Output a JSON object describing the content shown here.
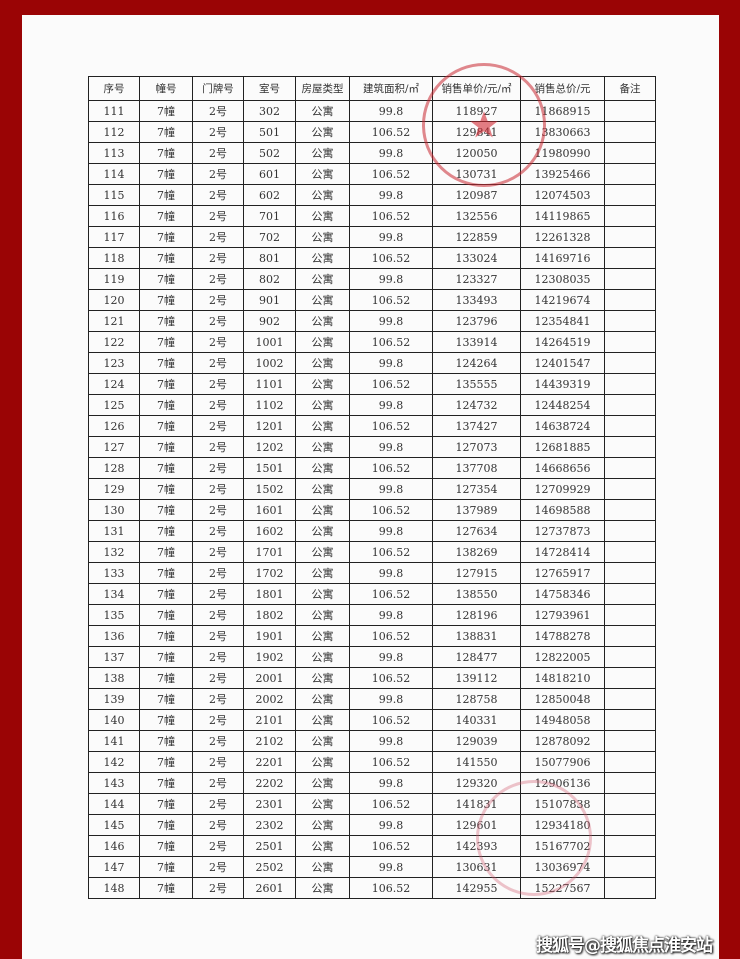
{
  "table": {
    "headers": [
      "序号",
      "幢号",
      "门牌号",
      "室号",
      "房屋类型",
      "建筑面积/㎡",
      "销售单价/元/㎡",
      "销售总价/元",
      "备注"
    ],
    "rows": [
      [
        "111",
        "7幢",
        "2号",
        "302",
        "公寓",
        "99.8",
        "118927",
        "11868915",
        ""
      ],
      [
        "112",
        "7幢",
        "2号",
        "501",
        "公寓",
        "106.52",
        "129841",
        "13830663",
        ""
      ],
      [
        "113",
        "7幢",
        "2号",
        "502",
        "公寓",
        "99.8",
        "120050",
        "11980990",
        ""
      ],
      [
        "114",
        "7幢",
        "2号",
        "601",
        "公寓",
        "106.52",
        "130731",
        "13925466",
        ""
      ],
      [
        "115",
        "7幢",
        "2号",
        "602",
        "公寓",
        "99.8",
        "120987",
        "12074503",
        ""
      ],
      [
        "116",
        "7幢",
        "2号",
        "701",
        "公寓",
        "106.52",
        "132556",
        "14119865",
        ""
      ],
      [
        "117",
        "7幢",
        "2号",
        "702",
        "公寓",
        "99.8",
        "122859",
        "12261328",
        ""
      ],
      [
        "118",
        "7幢",
        "2号",
        "801",
        "公寓",
        "106.52",
        "133024",
        "14169716",
        ""
      ],
      [
        "119",
        "7幢",
        "2号",
        "802",
        "公寓",
        "99.8",
        "123327",
        "12308035",
        ""
      ],
      [
        "120",
        "7幢",
        "2号",
        "901",
        "公寓",
        "106.52",
        "133493",
        "14219674",
        ""
      ],
      [
        "121",
        "7幢",
        "2号",
        "902",
        "公寓",
        "99.8",
        "123796",
        "12354841",
        ""
      ],
      [
        "122",
        "7幢",
        "2号",
        "1001",
        "公寓",
        "106.52",
        "133914",
        "14264519",
        ""
      ],
      [
        "123",
        "7幢",
        "2号",
        "1002",
        "公寓",
        "99.8",
        "124264",
        "12401547",
        ""
      ],
      [
        "124",
        "7幢",
        "2号",
        "1101",
        "公寓",
        "106.52",
        "135555",
        "14439319",
        ""
      ],
      [
        "125",
        "7幢",
        "2号",
        "1102",
        "公寓",
        "99.8",
        "124732",
        "12448254",
        ""
      ],
      [
        "126",
        "7幢",
        "2号",
        "1201",
        "公寓",
        "106.52",
        "137427",
        "14638724",
        ""
      ],
      [
        "127",
        "7幢",
        "2号",
        "1202",
        "公寓",
        "99.8",
        "127073",
        "12681885",
        ""
      ],
      [
        "128",
        "7幢",
        "2号",
        "1501",
        "公寓",
        "106.52",
        "137708",
        "14668656",
        ""
      ],
      [
        "129",
        "7幢",
        "2号",
        "1502",
        "公寓",
        "99.8",
        "127354",
        "12709929",
        ""
      ],
      [
        "130",
        "7幢",
        "2号",
        "1601",
        "公寓",
        "106.52",
        "137989",
        "14698588",
        ""
      ],
      [
        "131",
        "7幢",
        "2号",
        "1602",
        "公寓",
        "99.8",
        "127634",
        "12737873",
        ""
      ],
      [
        "132",
        "7幢",
        "2号",
        "1701",
        "公寓",
        "106.52",
        "138269",
        "14728414",
        ""
      ],
      [
        "133",
        "7幢",
        "2号",
        "1702",
        "公寓",
        "99.8",
        "127915",
        "12765917",
        ""
      ],
      [
        "134",
        "7幢",
        "2号",
        "1801",
        "公寓",
        "106.52",
        "138550",
        "14758346",
        ""
      ],
      [
        "135",
        "7幢",
        "2号",
        "1802",
        "公寓",
        "99.8",
        "128196",
        "12793961",
        ""
      ],
      [
        "136",
        "7幢",
        "2号",
        "1901",
        "公寓",
        "106.52",
        "138831",
        "14788278",
        ""
      ],
      [
        "137",
        "7幢",
        "2号",
        "1902",
        "公寓",
        "99.8",
        "128477",
        "12822005",
        ""
      ],
      [
        "138",
        "7幢",
        "2号",
        "2001",
        "公寓",
        "106.52",
        "139112",
        "14818210",
        ""
      ],
      [
        "139",
        "7幢",
        "2号",
        "2002",
        "公寓",
        "99.8",
        "128758",
        "12850048",
        ""
      ],
      [
        "140",
        "7幢",
        "2号",
        "2101",
        "公寓",
        "106.52",
        "140331",
        "14948058",
        ""
      ],
      [
        "141",
        "7幢",
        "2号",
        "2102",
        "公寓",
        "99.8",
        "129039",
        "12878092",
        ""
      ],
      [
        "142",
        "7幢",
        "2号",
        "2201",
        "公寓",
        "106.52",
        "141550",
        "15077906",
        ""
      ],
      [
        "143",
        "7幢",
        "2号",
        "2202",
        "公寓",
        "99.8",
        "129320",
        "12906136",
        ""
      ],
      [
        "144",
        "7幢",
        "2号",
        "2301",
        "公寓",
        "106.52",
        "141831",
        "15107838",
        ""
      ],
      [
        "145",
        "7幢",
        "2号",
        "2302",
        "公寓",
        "99.8",
        "129601",
        "12934180",
        ""
      ],
      [
        "146",
        "7幢",
        "2号",
        "2501",
        "公寓",
        "106.52",
        "142393",
        "15167702",
        ""
      ],
      [
        "147",
        "7幢",
        "2号",
        "2502",
        "公寓",
        "99.8",
        "130631",
        "13036974",
        ""
      ],
      [
        "148",
        "7幢",
        "2号",
        "2601",
        "公寓",
        "106.52",
        "142955",
        "15227567",
        ""
      ]
    ]
  },
  "watermark": "搜狐号@搜狐焦点淮安站",
  "colors": {
    "frame": "#9a0405",
    "seal": "#c82832"
  }
}
